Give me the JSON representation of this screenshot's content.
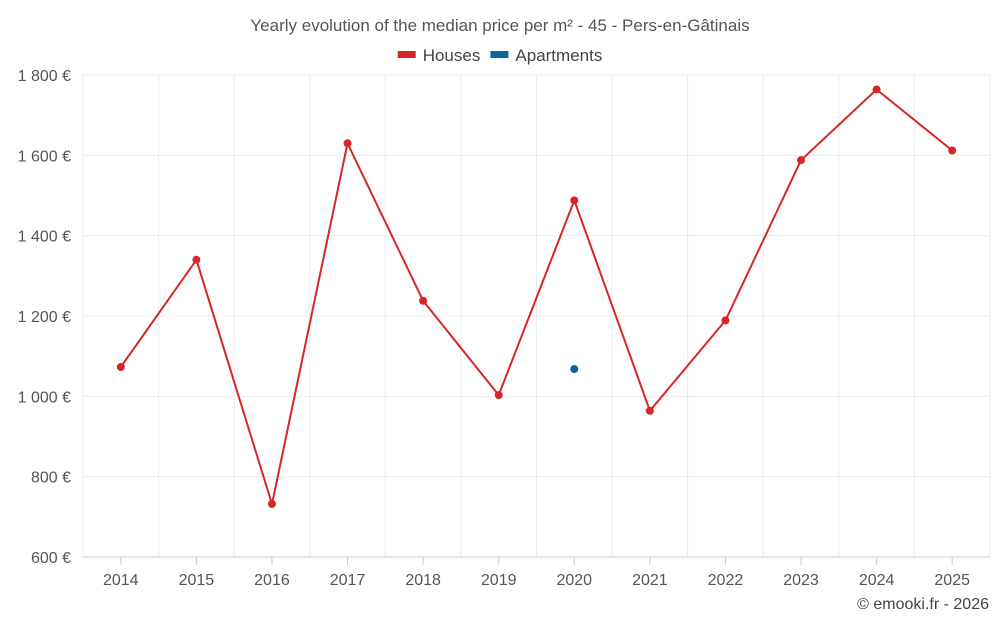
{
  "chart_data": {
    "type": "line",
    "title": "Yearly evolution of the median price per m² - 45 - Pers-en-Gâtinais",
    "categories": [
      "2014",
      "2015",
      "2016",
      "2017",
      "2018",
      "2019",
      "2020",
      "2021",
      "2022",
      "2023",
      "2024",
      "2025"
    ],
    "series": [
      {
        "name": "Houses",
        "color": "#d62728",
        "values": [
          1073,
          1340,
          732,
          1630,
          1238,
          1003,
          1488,
          964,
          1189,
          1588,
          1764,
          1612
        ]
      },
      {
        "name": "Apartments",
        "color": "#08689b",
        "values": [
          null,
          null,
          null,
          null,
          null,
          null,
          1068,
          null,
          null,
          null,
          null,
          null
        ]
      }
    ],
    "ylim": [
      600,
      1800
    ],
    "yticks": [
      600,
      800,
      1000,
      1200,
      1400,
      1600,
      1800
    ],
    "ytick_labels": [
      "600 €",
      "800 €",
      "1 000 €",
      "1 200 €",
      "1 400 €",
      "1 600 €",
      "1 800 €"
    ],
    "xlabel": "",
    "ylabel": "",
    "grid": true,
    "legend_position": "top-center"
  },
  "credit": "© emooki.fr - 2026"
}
